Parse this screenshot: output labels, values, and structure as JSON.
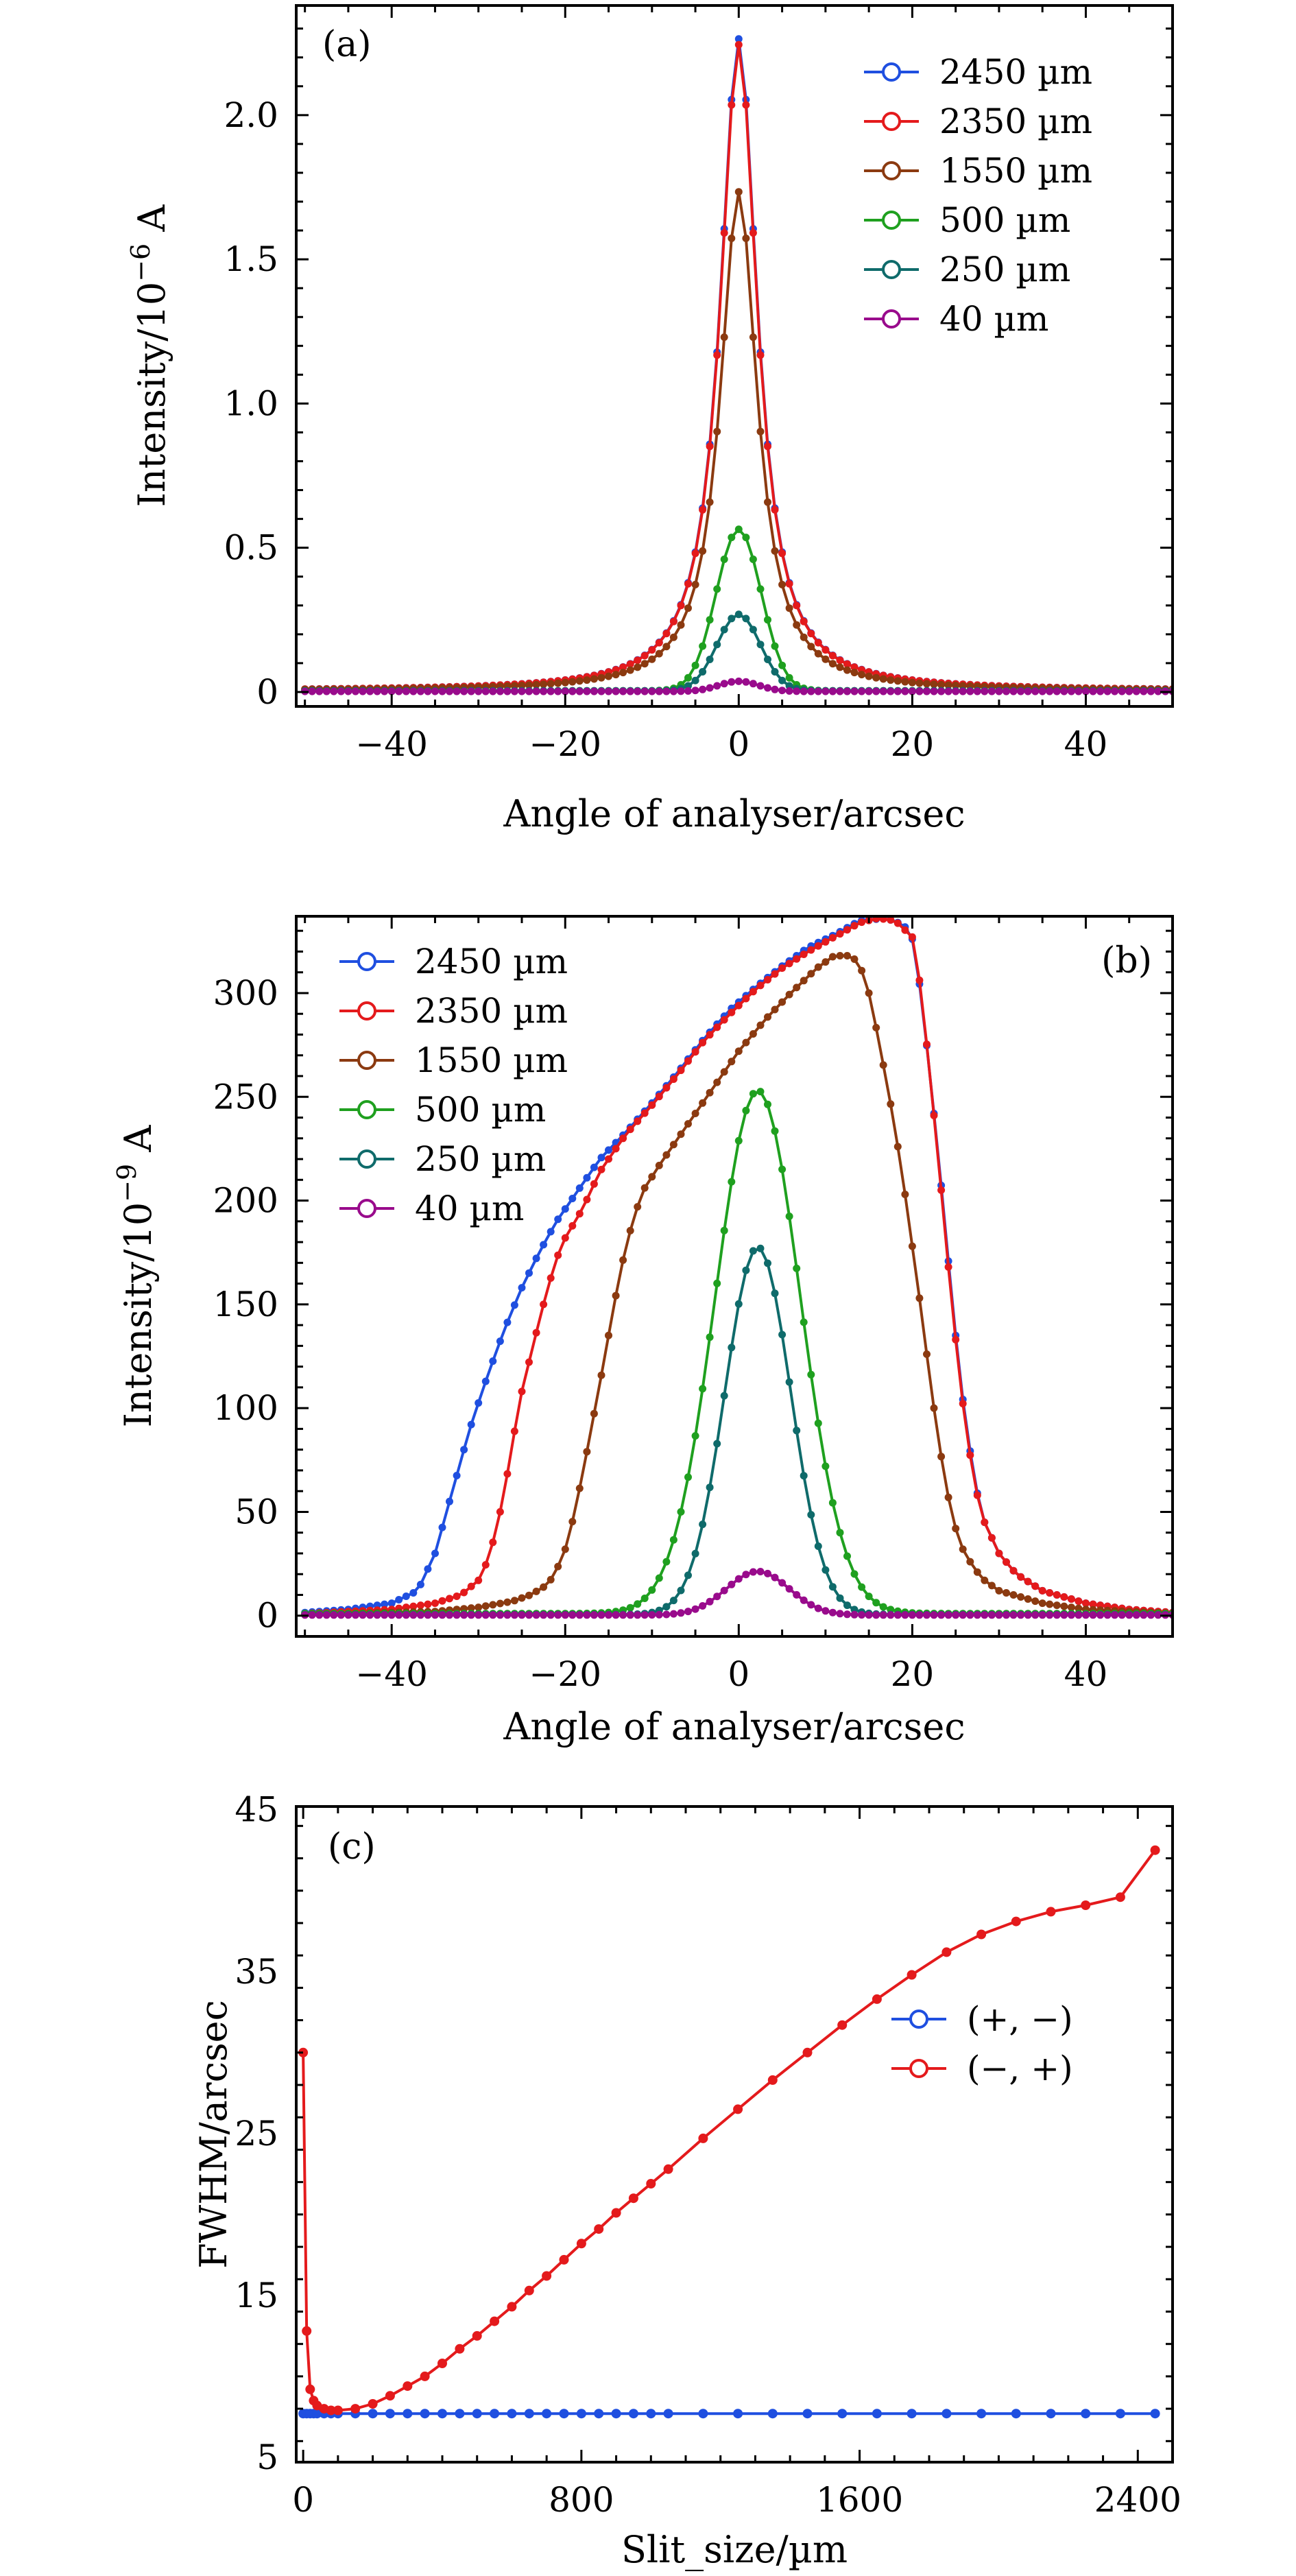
{
  "chart_data": [
    {
      "type": "line",
      "panel_label": "(a)",
      "xlabel": "Angle of analyser/arcsec",
      "ylabel": "Intensity/10",
      "ylabel_exp": "−6",
      "ylabel_unit": " A",
      "xlim": [
        -51,
        50
      ],
      "ylim": [
        -0.05,
        2.38
      ],
      "xticks": [
        -40,
        -20,
        0,
        20,
        40
      ],
      "xtick_labels": [
        "−40",
        "−20",
        "0",
        "20",
        "40"
      ],
      "yticks": [
        0,
        0.5,
        1.0,
        1.5,
        2.0
      ],
      "ytick_labels": [
        "0",
        "0.5",
        "1.0",
        "1.5",
        "2.0"
      ],
      "legend_position": "top-right",
      "series": [
        {
          "name": "2450 µm",
          "color": "#1f4fe0",
          "shape": "lorentz",
          "amp": 2.26,
          "center": 0,
          "width": 2.6,
          "base": 0.004
        },
        {
          "name": "2350 µm",
          "color": "#e41a1c",
          "shape": "lorentz",
          "amp": 2.24,
          "center": 0,
          "width": 2.6,
          "base": 0.004
        },
        {
          "name": "1550 µm",
          "color": "#8b3a10",
          "shape": "lorentz",
          "amp": 1.73,
          "center": 0,
          "width": 2.6,
          "base": 0.004
        },
        {
          "name": "500 µm",
          "color": "#1fa01f",
          "shape": "gauss",
          "amp": 0.56,
          "center": 0,
          "width": 2.6,
          "base": 0.004
        },
        {
          "name": "250 µm",
          "color": "#0f6b6b",
          "shape": "gauss",
          "amp": 0.265,
          "center": 0,
          "width": 2.5,
          "base": 0.004
        },
        {
          "name": "40 µm",
          "color": "#990b8c",
          "shape": "gauss",
          "amp": 0.035,
          "center": 0,
          "width": 2.3,
          "base": 0.002
        }
      ]
    },
    {
      "type": "line",
      "panel_label": "(b)",
      "xlabel": "Angle of analyser/arcsec",
      "ylabel": "Intensity/10",
      "ylabel_exp": "−9",
      "ylabel_unit": " A",
      "xlim": [
        -51,
        50
      ],
      "ylim": [
        -10,
        337
      ],
      "xticks": [
        -40,
        -20,
        0,
        20,
        40
      ],
      "xtick_labels": [
        "−40",
        "−20",
        "0",
        "20",
        "40"
      ],
      "yticks": [
        0,
        50,
        100,
        150,
        200,
        250,
        300
      ],
      "ytick_labels": [
        "0",
        "50",
        "100",
        "150",
        "200",
        "250",
        "300"
      ],
      "legend_position": "top-left",
      "series": [
        {
          "name": "2450 µm",
          "color": "#1f4fe0",
          "shape": "profile",
          "points": [
            [
              -50,
              1.5
            ],
            [
              -45,
              3
            ],
            [
              -40,
              6
            ],
            [
              -37,
              12
            ],
            [
              -35,
              30
            ],
            [
              -33,
              60
            ],
            [
              -31,
              90
            ],
            [
              -29,
              115
            ],
            [
              -27,
              138
            ],
            [
              -25,
              158
            ],
            [
              -23,
              175
            ],
            [
              -21,
              190
            ],
            [
              -19,
              202
            ],
            [
              -16,
              220
            ],
            [
              -13,
              233
            ],
            [
              -10,
              247
            ],
            [
              -7,
              262
            ],
            [
              -4,
              278
            ],
            [
              -1,
              292
            ],
            [
              2,
              303
            ],
            [
              5,
              313
            ],
            [
              8,
              322
            ],
            [
              11,
              328
            ],
            [
              14,
              335
            ],
            [
              17,
              336
            ],
            [
              19,
              333
            ],
            [
              20,
              326
            ],
            [
              21,
              300
            ],
            [
              22,
              262
            ],
            [
              23,
              222
            ],
            [
              24,
              178
            ],
            [
              25,
              135
            ],
            [
              26,
              98
            ],
            [
              27,
              70
            ],
            [
              28,
              48
            ],
            [
              30,
              30
            ],
            [
              32,
              20
            ],
            [
              35,
              12
            ],
            [
              40,
              6
            ],
            [
              45,
              3
            ],
            [
              50,
              1.5
            ]
          ]
        },
        {
          "name": "2350 µm",
          "color": "#e41a1c",
          "shape": "profile",
          "points": [
            [
              -50,
              1
            ],
            [
              -45,
              2
            ],
            [
              -40,
              3
            ],
            [
              -35,
              6
            ],
            [
              -32,
              10
            ],
            [
              -30,
              17
            ],
            [
              -29,
              26
            ],
            [
              -28,
              40
            ],
            [
              -27,
              60
            ],
            [
              -26,
              85
            ],
            [
              -25,
              108
            ],
            [
              -24,
              125
            ],
            [
              -23,
              142
            ],
            [
              -22,
              158
            ],
            [
              -21,
              172
            ],
            [
              -20,
              182
            ],
            [
              -18,
              196
            ],
            [
              -16,
              214
            ],
            [
              -13,
              232
            ],
            [
              -10,
              246
            ],
            [
              -7,
              261
            ],
            [
              -4,
              277
            ],
            [
              -1,
              290
            ],
            [
              2,
              302
            ],
            [
              5,
              312
            ],
            [
              8,
              320
            ],
            [
              11,
              327
            ],
            [
              14,
              334
            ],
            [
              16,
              336
            ],
            [
              18,
              335
            ],
            [
              20,
              327
            ],
            [
              21,
              302
            ],
            [
              22,
              262
            ],
            [
              23,
              220
            ],
            [
              24,
              175
            ],
            [
              25,
              133
            ],
            [
              26,
              96
            ],
            [
              27,
              68
            ],
            [
              28,
              48
            ],
            [
              30,
              30
            ],
            [
              32,
              20
            ],
            [
              35,
              12
            ],
            [
              40,
              6
            ],
            [
              45,
              3
            ],
            [
              50,
              1.5
            ]
          ]
        },
        {
          "name": "1550 µm",
          "color": "#8b3a10",
          "shape": "profile",
          "points": [
            [
              -50,
              0.5
            ],
            [
              -45,
              1
            ],
            [
              -40,
              1.5
            ],
            [
              -35,
              2
            ],
            [
              -30,
              4
            ],
            [
              -26,
              7
            ],
            [
              -24,
              10
            ],
            [
              -22,
              15
            ],
            [
              -21,
              22
            ],
            [
              -20,
              32
            ],
            [
              -19,
              48
            ],
            [
              -18,
              68
            ],
            [
              -17,
              90
            ],
            [
              -16,
              112
            ],
            [
              -15,
              135
            ],
            [
              -14,
              158
            ],
            [
              -13,
              178
            ],
            [
              -12,
              193
            ],
            [
              -11,
              205
            ],
            [
              -9,
              218
            ],
            [
              -6,
              236
            ],
            [
              -3,
              254
            ],
            [
              0,
              272
            ],
            [
              3,
              287
            ],
            [
              6,
              300
            ],
            [
              9,
              312
            ],
            [
              11,
              318
            ],
            [
              13,
              318
            ],
            [
              14,
              313
            ],
            [
              15,
              300
            ],
            [
              16,
              280
            ],
            [
              17,
              258
            ],
            [
              18,
              235
            ],
            [
              19,
              208
            ],
            [
              20,
              178
            ],
            [
              21,
              148
            ],
            [
              22,
              115
            ],
            [
              23,
              85
            ],
            [
              24,
              60
            ],
            [
              25,
              42
            ],
            [
              26,
              30
            ],
            [
              28,
              18
            ],
            [
              30,
              12
            ],
            [
              35,
              6
            ],
            [
              40,
              3
            ],
            [
              45,
              2
            ],
            [
              50,
              1
            ]
          ]
        },
        {
          "name": "500 µm",
          "color": "#1fa01f",
          "shape": "gauss",
          "amp": 252,
          "center": 2.2,
          "width": 4.9,
          "base": 1
        },
        {
          "name": "250 µm",
          "color": "#0f6b6b",
          "shape": "gauss",
          "amp": 177,
          "center": 2.2,
          "width": 3.8,
          "base": 0.5
        },
        {
          "name": "40 µm",
          "color": "#990b8c",
          "shape": "gauss",
          "amp": 21,
          "center": 2.2,
          "width": 3.6,
          "base": 0.3
        }
      ]
    },
    {
      "type": "line",
      "panel_label": "(c)",
      "xlabel": "Slit_size/µm",
      "ylabel": "FWHM/arcsec",
      "xlim": [
        -20,
        2500
      ],
      "ylim": [
        4.7,
        45.2
      ],
      "xticks": [
        0,
        800,
        1600,
        2400
      ],
      "xtick_labels": [
        "0",
        "800",
        "1600",
        "2400"
      ],
      "yticks": [
        5,
        15,
        25,
        35,
        45
      ],
      "ytick_labels": [
        "5",
        "15",
        "25",
        "35",
        "45"
      ],
      "legend_position": "right",
      "series": [
        {
          "name": "(+, −)",
          "color": "#1f4fe0",
          "points": [
            [
              0,
              7.7
            ],
            [
              10,
              7.7
            ],
            [
              20,
              7.7
            ],
            [
              30,
              7.7
            ],
            [
              40,
              7.7
            ],
            [
              60,
              7.7
            ],
            [
              80,
              7.7
            ],
            [
              100,
              7.7
            ],
            [
              150,
              7.7
            ],
            [
              200,
              7.7
            ],
            [
              250,
              7.7
            ],
            [
              300,
              7.7
            ],
            [
              350,
              7.7
            ],
            [
              400,
              7.7
            ],
            [
              450,
              7.7
            ],
            [
              500,
              7.7
            ],
            [
              550,
              7.7
            ],
            [
              600,
              7.7
            ],
            [
              650,
              7.7
            ],
            [
              700,
              7.7
            ],
            [
              750,
              7.7
            ],
            [
              800,
              7.7
            ],
            [
              850,
              7.7
            ],
            [
              900,
              7.7
            ],
            [
              950,
              7.7
            ],
            [
              1000,
              7.7
            ],
            [
              1050,
              7.7
            ],
            [
              1150,
              7.7
            ],
            [
              1250,
              7.7
            ],
            [
              1350,
              7.7
            ],
            [
              1450,
              7.7
            ],
            [
              1550,
              7.7
            ],
            [
              1650,
              7.7
            ],
            [
              1750,
              7.7
            ],
            [
              1850,
              7.7
            ],
            [
              1950,
              7.7
            ],
            [
              2050,
              7.7
            ],
            [
              2150,
              7.7
            ],
            [
              2250,
              7.7
            ],
            [
              2350,
              7.7
            ],
            [
              2450,
              7.7
            ]
          ]
        },
        {
          "name": "(−, +)",
          "color": "#e41a1c",
          "points": [
            [
              0,
              30
            ],
            [
              10,
              12.8
            ],
            [
              20,
              9.2
            ],
            [
              30,
              8.5
            ],
            [
              40,
              8.2
            ],
            [
              60,
              8.0
            ],
            [
              80,
              7.9
            ],
            [
              100,
              7.9
            ],
            [
              150,
              8.0
            ],
            [
              200,
              8.3
            ],
            [
              250,
              8.8
            ],
            [
              300,
              9.4
            ],
            [
              350,
              10.0
            ],
            [
              400,
              10.8
            ],
            [
              450,
              11.7
            ],
            [
              500,
              12.5
            ],
            [
              550,
              13.4
            ],
            [
              600,
              14.3
            ],
            [
              650,
              15.3
            ],
            [
              700,
              16.2
            ],
            [
              750,
              17.2
            ],
            [
              800,
              18.2
            ],
            [
              850,
              19.1
            ],
            [
              900,
              20.1
            ],
            [
              950,
              21.0
            ],
            [
              1000,
              21.9
            ],
            [
              1050,
              22.8
            ],
            [
              1150,
              24.7
            ],
            [
              1250,
              26.5
            ],
            [
              1350,
              28.3
            ],
            [
              1450,
              30.0
            ],
            [
              1550,
              31.7
            ],
            [
              1650,
              33.3
            ],
            [
              1750,
              34.8
            ],
            [
              1850,
              36.2
            ],
            [
              1950,
              37.3
            ],
            [
              2050,
              38.1
            ],
            [
              2150,
              38.7
            ],
            [
              2250,
              39.1
            ],
            [
              2350,
              39.6
            ],
            [
              2450,
              42.5
            ]
          ]
        }
      ]
    }
  ]
}
